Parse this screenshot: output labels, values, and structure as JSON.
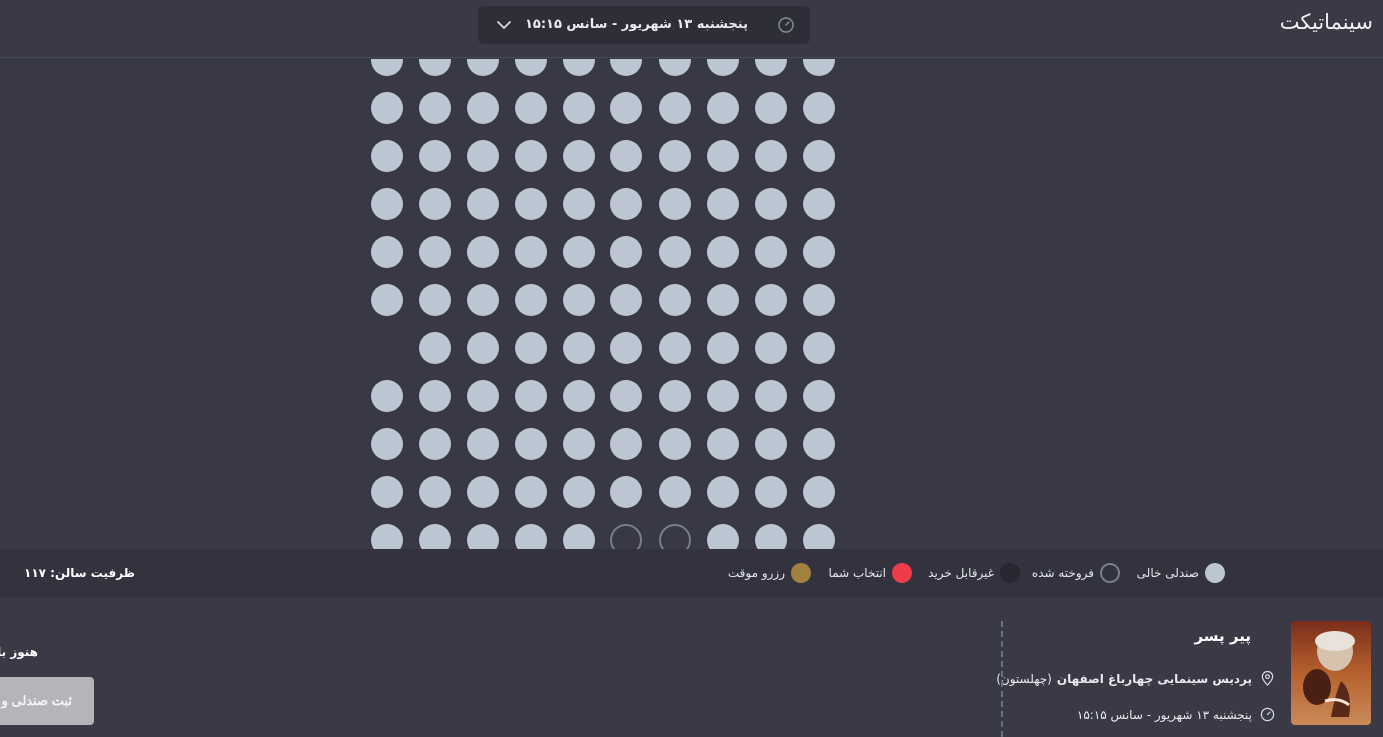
{
  "header": {
    "logo": "سینماتیکت",
    "session_label": "پنجشنبه ۱۳ شهریور - سانس ۱۵:۱۵"
  },
  "seatmap": {
    "columns": 10,
    "rows": [
      [
        "empty",
        "empty",
        "empty",
        "empty",
        "empty",
        "empty",
        "empty",
        "empty",
        "empty",
        "empty"
      ],
      [
        "empty",
        "empty",
        "empty",
        "empty",
        "empty",
        "empty",
        "empty",
        "empty",
        "empty",
        "empty"
      ],
      [
        "empty",
        "empty",
        "empty",
        "empty",
        "empty",
        "empty",
        "empty",
        "empty",
        "empty",
        "empty"
      ],
      [
        "empty",
        "empty",
        "empty",
        "empty",
        "empty",
        "empty",
        "empty",
        "empty",
        "empty",
        "empty"
      ],
      [
        "empty",
        "empty",
        "empty",
        "empty",
        "empty",
        "empty",
        "empty",
        "empty",
        "empty",
        "empty"
      ],
      [
        "empty",
        "empty",
        "empty",
        "empty",
        "empty",
        "empty",
        "empty",
        "empty",
        "empty",
        "empty"
      ],
      [
        "none",
        "empty",
        "empty",
        "empty",
        "empty",
        "empty",
        "empty",
        "empty",
        "empty",
        "empty"
      ],
      [
        "empty",
        "empty",
        "empty",
        "empty",
        "empty",
        "empty",
        "empty",
        "empty",
        "empty",
        "empty"
      ],
      [
        "empty",
        "empty",
        "empty",
        "empty",
        "empty",
        "empty",
        "empty",
        "empty",
        "empty",
        "empty"
      ],
      [
        "empty",
        "empty",
        "empty",
        "empty",
        "empty",
        "empty",
        "empty",
        "empty",
        "empty",
        "empty"
      ],
      [
        "empty",
        "empty",
        "empty",
        "empty",
        "empty",
        "sold",
        "sold",
        "empty",
        "empty",
        "empty"
      ]
    ]
  },
  "legend": {
    "empty": "صندلی خالی",
    "sold": "فروخته شده",
    "unavailable": "غیرقابل خرید",
    "selected": "انتخاب شما",
    "reserved": "رزرو موقت"
  },
  "colors": {
    "empty": "#bcc6d3",
    "unavailable": "#262731",
    "selected": "#f03b4b",
    "reserved": "#a0813f"
  },
  "capacity_label": "ظرفیت سالن:",
  "capacity_value": "۱۱۷",
  "movie": {
    "title": "پیر پسر",
    "cinema": "پردیس سینمایی چهارباغ اصفهان",
    "cinema_branch": "(چهلستون)",
    "session": "پنجشنبه ۱۳ شهریور - سانس ۱۵:۱۵"
  },
  "note": "هنوز بلیط",
  "submit_label": "ثبت صندلی و"
}
